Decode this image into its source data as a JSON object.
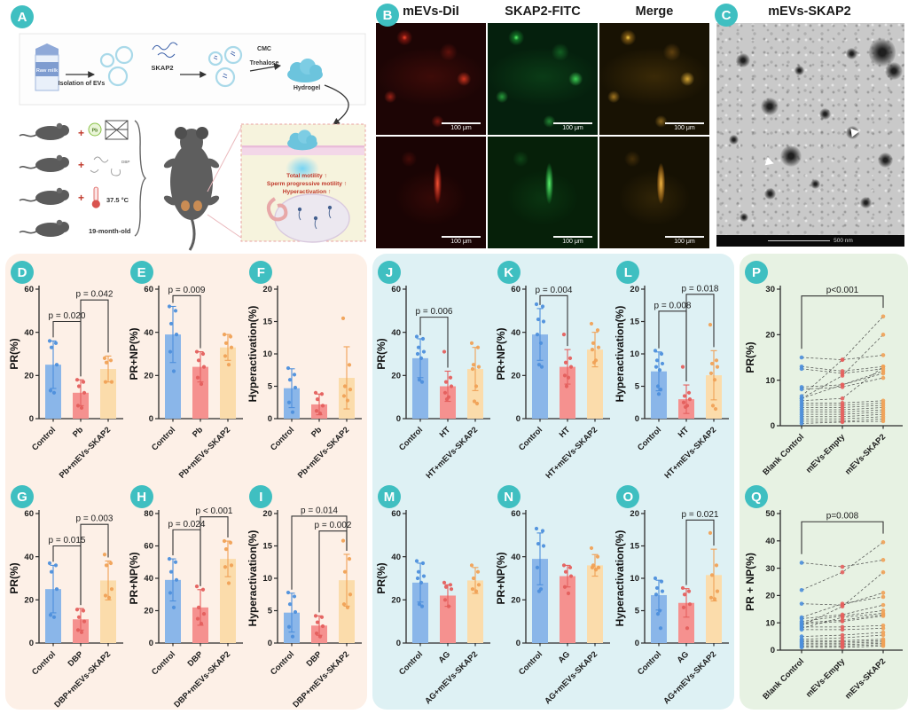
{
  "panels": {
    "A": {
      "label": "A",
      "flow": {
        "milk": "Raw milk",
        "isolation": "Isolation of EVs",
        "skap2": "SKAP2",
        "cmc": "CMC",
        "trehalose": "Trehalose",
        "hydrogel": "Hydrogel"
      },
      "plus_sign": "+",
      "mouse_models": [
        {
          "label": "Pb"
        },
        {
          "label": "DBP"
        },
        {
          "label": "37.5 °C"
        },
        {
          "label": "19-month-old"
        }
      ],
      "outcomes": [
        "Total motility ↑",
        "Sperm progressive motility ↑",
        "Hyperactivation ↑"
      ]
    },
    "B": {
      "label": "B",
      "columns": [
        "mEVs-DiI",
        "SKAP2-FITC",
        "Merge"
      ],
      "scale_bar": "100 μm"
    },
    "C": {
      "label": "C",
      "title": "mEVs-SKAP2",
      "scale_bar": "500 nm"
    }
  },
  "colors": {
    "bars": [
      "#8ab6e9",
      "#f5918f",
      "#fbdcab"
    ],
    "dots": [
      "#4d8fdc",
      "#e45f5d",
      "#f0a156"
    ],
    "axis": "#2b2b2b",
    "pline": "#333333",
    "badge_bg": "#3fbfc1",
    "section_bg": [
      "#fdf0e7",
      "#def1f4",
      "#e7f2e3"
    ]
  },
  "chart_data": [
    {
      "id": "D",
      "type": "bar",
      "ylabel": "PR(%)",
      "ylim": [
        0,
        60
      ],
      "yticks": [
        0,
        20,
        40,
        60
      ],
      "categories": [
        "Control",
        "Pb",
        "Pb+mEVs-SKAP2"
      ],
      "values": [
        25,
        12,
        23
      ],
      "errors": [
        11,
        6,
        6
      ],
      "points": [
        [
          36,
          35,
          33,
          25,
          13,
          12
        ],
        [
          18,
          17,
          15,
          12,
          6,
          5
        ],
        [
          28,
          27,
          26,
          17,
          17
        ]
      ],
      "pvals": [
        {
          "from": 0,
          "to": 1,
          "label": "p = 0.020",
          "y": 45
        },
        {
          "from": 1,
          "to": 2,
          "label": "p = 0.042",
          "y": 55
        }
      ]
    },
    {
      "id": "E",
      "type": "bar",
      "ylabel": "PR+NP(%)",
      "ylim": [
        0,
        60
      ],
      "yticks": [
        0,
        20,
        40,
        60
      ],
      "categories": [
        "Control",
        "Pb",
        "Pb+mEVs-SKAP2"
      ],
      "values": [
        39,
        24,
        33
      ],
      "errors": [
        13,
        7,
        6
      ],
      "points": [
        [
          52,
          50,
          44,
          39,
          31,
          22
        ],
        [
          31,
          30,
          27,
          24,
          19,
          16
        ],
        [
          39,
          38,
          35,
          33,
          29,
          25
        ]
      ],
      "pvals": [
        {
          "from": 0,
          "to": 1,
          "label": "p = 0.009",
          "y": 57
        }
      ]
    },
    {
      "id": "F",
      "type": "bar",
      "ylabel": "Hyperactivation(%)",
      "ylim": [
        0,
        20
      ],
      "yticks": [
        0,
        5,
        10,
        15,
        20
      ],
      "categories": [
        "Control",
        "Pb",
        "Pb+mEVs-SKAP2"
      ],
      "values": [
        4.7,
        2.2,
        6.3
      ],
      "errors": [
        3,
        1.6,
        4.8
      ],
      "points": [
        [
          7.8,
          6.8,
          6,
          4.8,
          2.5,
          1
        ],
        [
          4,
          3.8,
          3,
          2,
          1.2,
          0.8
        ],
        [
          15.5,
          8.3,
          5,
          4.5,
          3.5,
          2.8
        ]
      ],
      "pvals": []
    },
    {
      "id": "G",
      "type": "bar",
      "ylabel": "PR(%)",
      "ylim": [
        0,
        60
      ],
      "yticks": [
        0,
        20,
        40,
        60
      ],
      "categories": [
        "Control",
        "DBP",
        "DBP+mEVs-SKAP2"
      ],
      "values": [
        25,
        11,
        29
      ],
      "errors": [
        11,
        5,
        9
      ],
      "points": [
        [
          37,
          36,
          33,
          25,
          13,
          12
        ],
        [
          15.5,
          15,
          12,
          10,
          6,
          5
        ],
        [
          41,
          37,
          36,
          25,
          22,
          21
        ]
      ],
      "pvals": [
        {
          "from": 0,
          "to": 1,
          "label": "p = 0.015",
          "y": 45
        },
        {
          "from": 1,
          "to": 2,
          "label": "p = 0.003",
          "y": 55
        }
      ]
    },
    {
      "id": "H",
      "type": "bar",
      "ylabel": "PR+NP(%)",
      "ylim": [
        0,
        80
      ],
      "yticks": [
        0,
        20,
        40,
        60,
        80
      ],
      "categories": [
        "Control",
        "DBP",
        "DBP+mEVs-SKAP2"
      ],
      "values": [
        39,
        22,
        52
      ],
      "errors": [
        13,
        11,
        11
      ],
      "points": [
        [
          52,
          50,
          44,
          39,
          31,
          22
        ],
        [
          35,
          33,
          22,
          18,
          15,
          12
        ],
        [
          63,
          62,
          58,
          48,
          47,
          37
        ]
      ],
      "pvals": [
        {
          "from": 0,
          "to": 1,
          "label": "p = 0.024",
          "y": 70
        },
        {
          "from": 1,
          "to": 2,
          "label": "p < 0.001",
          "y": 78
        }
      ]
    },
    {
      "id": "I",
      "type": "bar",
      "ylabel": "Hyperactivation(%)",
      "ylim": [
        0,
        20
      ],
      "yticks": [
        0,
        5,
        10,
        15,
        20
      ],
      "categories": [
        "Control",
        "DBP",
        "DBP+mEVs-SKAP2"
      ],
      "values": [
        4.7,
        2.7,
        9.7
      ],
      "errors": [
        3,
        1.5,
        4
      ],
      "points": [
        [
          7.8,
          7.2,
          6,
          4.8,
          2.5,
          1
        ],
        [
          4.2,
          4,
          3.2,
          2.6,
          1.5,
          1
        ],
        [
          15.8,
          13,
          11,
          7.5,
          6,
          5.5
        ]
      ],
      "pvals": [
        {
          "from": 1,
          "to": 2,
          "label": "p = 0.002",
          "y": 17.3
        },
        {
          "from": 0,
          "to": 2,
          "label": "p = 0.014",
          "y": 19.6
        }
      ]
    },
    {
      "id": "J",
      "type": "bar",
      "ylabel": "PR(%)",
      "ylim": [
        0,
        60
      ],
      "yticks": [
        0,
        20,
        40,
        60
      ],
      "categories": [
        "Control",
        "HT",
        "HT+mEVs-SKAP2"
      ],
      "values": [
        28,
        15,
        23
      ],
      "errors": [
        9,
        7,
        10
      ],
      "points": [
        [
          38,
          37,
          33,
          31,
          30,
          28,
          18,
          17
        ],
        [
          31,
          19,
          17,
          15,
          12,
          10,
          9
        ],
        [
          35,
          33,
          25,
          24,
          23,
          15,
          8,
          7
        ]
      ],
      "pvals": [
        {
          "from": 0,
          "to": 1,
          "label": "p = 0.006",
          "y": 47
        }
      ]
    },
    {
      "id": "K",
      "type": "bar",
      "ylabel": "PR+NP(%)",
      "ylim": [
        0,
        60
      ],
      "yticks": [
        0,
        20,
        40,
        60
      ],
      "categories": [
        "Control",
        "HT",
        "HT+mEVs-SKAP2"
      ],
      "values": [
        39,
        24,
        32
      ],
      "errors": [
        12,
        8,
        8
      ],
      "points": [
        [
          53,
          52,
          46,
          45,
          39,
          35,
          25,
          24
        ],
        [
          39,
          28,
          26,
          24,
          20,
          19,
          15
        ],
        [
          44,
          41,
          35,
          33,
          32,
          27,
          26
        ]
      ],
      "pvals": [
        {
          "from": 0,
          "to": 1,
          "label": "p = 0.004",
          "y": 57
        }
      ]
    },
    {
      "id": "L",
      "type": "bar",
      "ylabel": "Hyperactivation(%)",
      "ylim": [
        0,
        20
      ],
      "yticks": [
        0,
        5,
        10,
        15,
        20
      ],
      "categories": [
        "Control",
        "HT",
        "HT+mEVs-SKAP2"
      ],
      "values": [
        7.3,
        3.0,
        6.7
      ],
      "errors": [
        3,
        2.2,
        3.8
      ],
      "points": [
        [
          10.5,
          10,
          9,
          8.5,
          8,
          7.5,
          5,
          4.5,
          3.8
        ],
        [
          8,
          4,
          3.5,
          3,
          2.5,
          2,
          1.8
        ],
        [
          14.5,
          9,
          8.5,
          8,
          7,
          6,
          2,
          1.5
        ]
      ],
      "pvals": [
        {
          "from": 0,
          "to": 1,
          "label": "p = 0.008",
          "y": 16.6
        },
        {
          "from": 1,
          "to": 2,
          "label": "p = 0.018",
          "y": 19.2
        }
      ]
    },
    {
      "id": "M",
      "type": "bar",
      "ylabel": "PR(%)",
      "ylim": [
        0,
        60
      ],
      "yticks": [
        0,
        20,
        40,
        60
      ],
      "categories": [
        "Control",
        "AG",
        "AG+mEVs-SKAP2"
      ],
      "values": [
        28,
        22,
        29
      ],
      "errors": [
        9,
        5,
        6
      ],
      "points": [
        [
          38,
          37,
          33,
          31,
          30,
          28,
          18,
          17
        ],
        [
          28,
          27,
          26,
          25,
          20,
          17
        ],
        [
          36,
          33,
          30,
          27,
          25,
          24
        ]
      ],
      "pvals": []
    },
    {
      "id": "N",
      "type": "bar",
      "ylabel": "PR+NP(%)",
      "ylim": [
        0,
        60
      ],
      "yticks": [
        0,
        20,
        40,
        60
      ],
      "categories": [
        "Control",
        "AG",
        "AG+mEVs-SKAP2"
      ],
      "values": [
        39,
        31,
        36
      ],
      "errors": [
        12,
        5,
        5
      ],
      "points": [
        [
          53,
          52,
          46,
          45,
          35,
          25,
          24
        ],
        [
          36,
          35,
          33,
          31,
          26,
          23
        ],
        [
          44,
          40,
          36,
          35,
          35,
          34
        ]
      ],
      "pvals": []
    },
    {
      "id": "O",
      "type": "bar",
      "ylabel": "Hyperactivation(%)",
      "ylim": [
        0,
        20
      ],
      "yticks": [
        0,
        5,
        10,
        15,
        20
      ],
      "categories": [
        "Control",
        "AG",
        "AG+mEVs-SKAP2"
      ],
      "values": [
        7.4,
        6.2,
        10.5
      ],
      "errors": [
        2.3,
        2.2,
        4
      ],
      "points": [
        [
          10,
          9.5,
          8.5,
          8,
          7.5,
          5,
          4.5,
          2.3
        ],
        [
          8.5,
          8,
          7.5,
          6,
          5.5,
          2.3
        ],
        [
          17,
          12,
          10.5,
          8,
          7,
          6.8
        ]
      ],
      "pvals": [
        {
          "from": 1,
          "to": 2,
          "label": "p = 0.021",
          "y": 19
        }
      ]
    },
    {
      "id": "P",
      "type": "paired",
      "ylabel": "PR(%)",
      "ylim": [
        0,
        30
      ],
      "yticks": [
        0,
        10,
        20,
        30
      ],
      "categories": [
        "Blank Control",
        "mEVs-Empty",
        "mEVs-SKAP2"
      ],
      "pairs": [
        [
          15,
          14.5,
          15.5
        ],
        [
          13,
          12,
          13
        ],
        [
          12.5,
          11.5,
          12.5
        ],
        [
          8.5,
          9,
          12
        ],
        [
          8,
          8.5,
          10.5
        ],
        [
          6.5,
          14.5,
          24
        ],
        [
          6,
          11,
          20
        ],
        [
          6,
          9,
          11.5
        ],
        [
          5.5,
          6,
          13
        ],
        [
          5,
          5,
          5.5
        ],
        [
          4.5,
          4.5,
          5
        ],
        [
          4,
          4,
          4.5
        ],
        [
          3.5,
          3.5,
          4
        ],
        [
          3,
          3,
          3.5
        ],
        [
          2.5,
          2.5,
          3
        ],
        [
          2,
          2,
          2.5
        ],
        [
          1.5,
          1.5,
          2
        ],
        [
          1,
          1,
          1.5
        ],
        [
          0.5,
          0.8,
          1
        ]
      ],
      "pvals": [
        {
          "from": 0,
          "to": 2,
          "label": "p<0.001",
          "y": 28.5
        }
      ]
    },
    {
      "id": "Q",
      "type": "paired",
      "ylabel": "PR + NP(%)",
      "ylim": [
        0,
        50
      ],
      "yticks": [
        0,
        10,
        20,
        30,
        40,
        50
      ],
      "categories": [
        "Blank Control",
        "mEVs-Empty",
        "mEVs-SKAP2"
      ],
      "pairs": [
        [
          32,
          30.5,
          33
        ],
        [
          22,
          28.5,
          39.5
        ],
        [
          17,
          16.5,
          21
        ],
        [
          12,
          17,
          19.5
        ],
        [
          11.5,
          13,
          16.5
        ],
        [
          10.5,
          12.5,
          14.5
        ],
        [
          10,
          11,
          13
        ],
        [
          9.5,
          10.5,
          12.5
        ],
        [
          9,
          16,
          28.5
        ],
        [
          8.5,
          8.5,
          9
        ],
        [
          8,
          12,
          13.5
        ],
        [
          7.5,
          7.5,
          8
        ],
        [
          5,
          5.5,
          6.5
        ],
        [
          4,
          4.5,
          5.5
        ],
        [
          3.5,
          3.5,
          4
        ],
        [
          3,
          3,
          3.5
        ],
        [
          2.5,
          2.5,
          3
        ],
        [
          2,
          2,
          2.5
        ],
        [
          1.5,
          1.5,
          2
        ],
        [
          1,
          1,
          1.5
        ]
      ],
      "pvals": [
        {
          "from": 0,
          "to": 2,
          "label": "p=0.008",
          "y": 47
        }
      ]
    }
  ]
}
